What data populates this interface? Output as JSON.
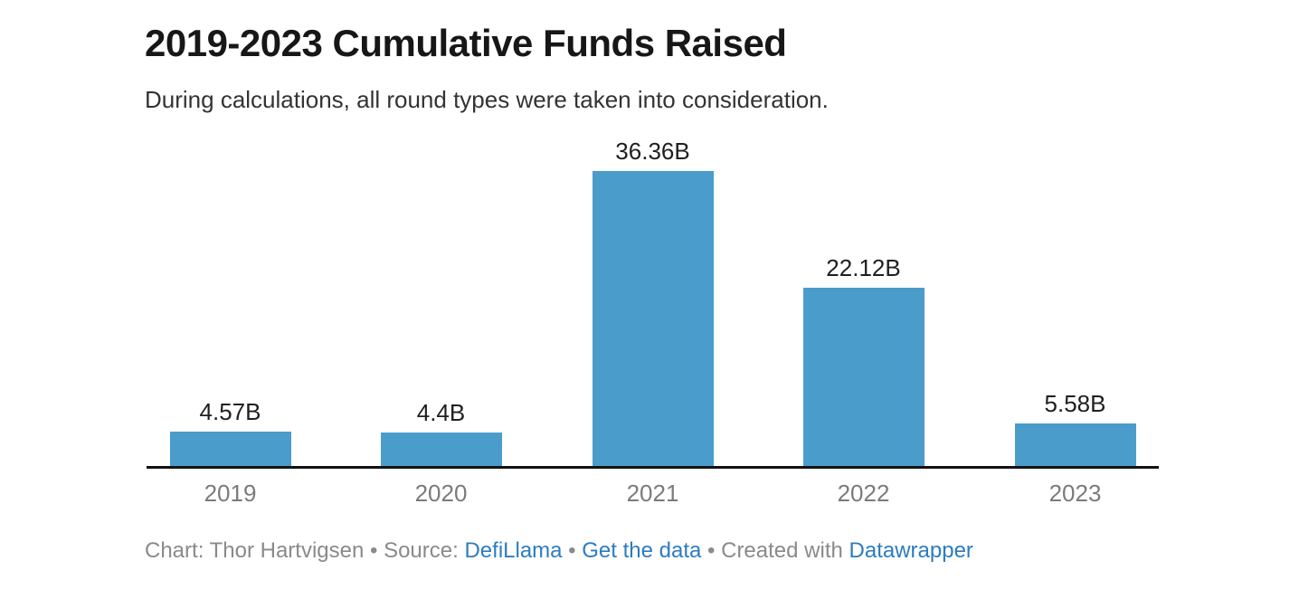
{
  "header": {
    "title": "2019-2023 Cumulative Funds Raised",
    "subtitle": "During calculations, all round types were taken into consideration."
  },
  "chart_data": {
    "type": "bar",
    "title": "2019-2023 Cumulative Funds Raised",
    "subtitle": "During calculations, all round types were taken into consideration.",
    "categories": [
      "2019",
      "2020",
      "2021",
      "2022",
      "2023"
    ],
    "values": [
      4.57,
      4.4,
      36.36,
      22.12,
      5.58
    ],
    "value_labels": [
      "4.57B",
      "4.4B",
      "36.36B",
      "22.12B",
      "5.58B"
    ],
    "unit": "B (billions USD)",
    "xlabel": "",
    "ylabel": "",
    "ylim": [
      0,
      40
    ],
    "grid": false,
    "legend": "none",
    "orientation": "vertical",
    "bar_color": "#4a9dca"
  },
  "footer": {
    "credit": "Chart: Thor Hartvigsen",
    "sep1": " • ",
    "source_label": "Source: ",
    "source_link": "DefiLlama",
    "sep2": " • ",
    "data_link": "Get the data",
    "sep3": " • ",
    "created_label": "Created with ",
    "tool_link": "Datawrapper"
  },
  "colors": {
    "bar": "#4a9dca",
    "link": "#2d7cbf",
    "axis": "#121212",
    "footer_text": "#8a8a8a",
    "category_label": "#7b7b7b",
    "value_label": "#1f1f1f",
    "title": "#171717",
    "background": "#ffffff"
  }
}
